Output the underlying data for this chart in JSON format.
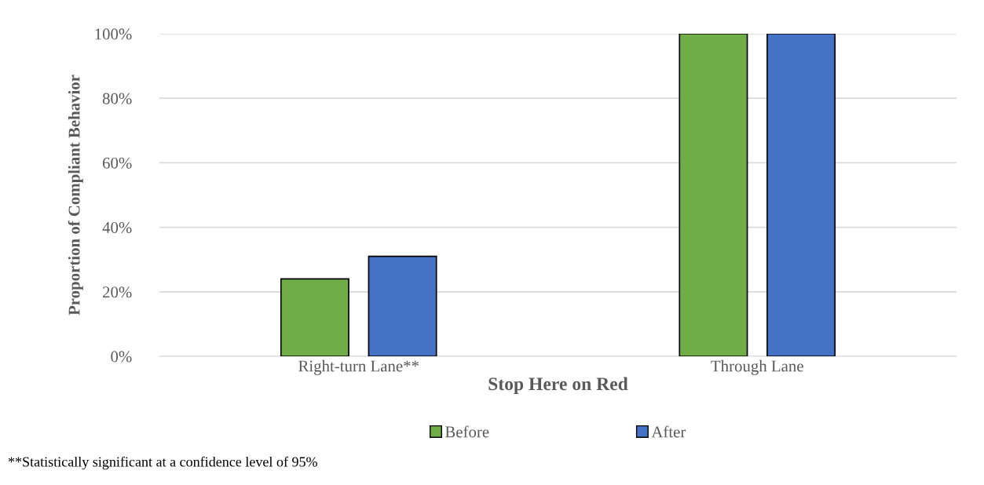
{
  "chart_data": {
    "type": "bar",
    "xlabel": "Stop Here on Red",
    "ylabel": "Proportion of Compliant Behavior",
    "categories": [
      "Right-turn Lane**",
      "Through Lane"
    ],
    "series": [
      {
        "name": "Before",
        "color": "#70ad47",
        "values": [
          24,
          100
        ]
      },
      {
        "name": "After",
        "color": "#4472c4",
        "values": [
          31,
          100
        ]
      }
    ],
    "ylim": [
      0,
      100
    ],
    "yticks": [
      {
        "value": 0,
        "label": "0%"
      },
      {
        "value": 20,
        "label": "20%"
      },
      {
        "value": 40,
        "label": "40%"
      },
      {
        "value": 60,
        "label": "60%"
      },
      {
        "value": 80,
        "label": "80%"
      },
      {
        "value": 100,
        "label": "100%"
      }
    ],
    "grid": "y",
    "legend": "bottom",
    "annotations": [
      "**Statistically significant at a confidence level of 95%"
    ]
  }
}
